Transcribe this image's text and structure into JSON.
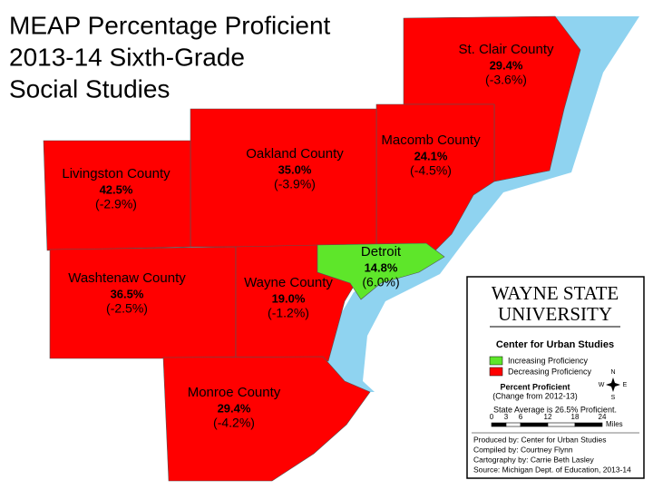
{
  "title": [
    "MEAP Percentage Proficient",
    "2013-14 Sixth-Grade",
    "Social Studies"
  ],
  "regions": [
    {
      "name": "St. Clair County",
      "percent": "29.4%",
      "change": "(-3.6%)",
      "color": "#ff0000"
    },
    {
      "name": "Macomb County",
      "percent": "24.1%",
      "change": "(-4.5%)",
      "color": "#ff0000"
    },
    {
      "name": "Oakland County",
      "percent": "35.0%",
      "change": "(-3.9%)",
      "color": "#ff0000"
    },
    {
      "name": "Livingston County",
      "percent": "42.5%",
      "change": "(-2.9%)",
      "color": "#ff0000"
    },
    {
      "name": "Washtenaw County",
      "percent": "36.5%",
      "change": "(-2.5%)",
      "color": "#ff0000"
    },
    {
      "name": "Wayne County",
      "percent": "19.0%",
      "change": "(-1.2%)",
      "color": "#ff0000"
    },
    {
      "name": "Detroit",
      "percent": "14.8%",
      "change": "(6.0%)",
      "color": "#5ee62a"
    },
    {
      "name": "Monroe County",
      "percent": "29.4%",
      "change": "(-4.2%)",
      "color": "#ff0000"
    }
  ],
  "legend": {
    "logo": [
      "WAYNE STATE",
      "UNIVERSITY"
    ],
    "center": "Center for Urban Studies",
    "items": [
      {
        "label": "Increasing Proficiency",
        "color": "#5ee62a"
      },
      {
        "label": "Decreasing Proficiency",
        "color": "#ff0000"
      }
    ],
    "percent_title": "Percent Proficient",
    "percent_sub": "(Change from 2012-13)",
    "compass": [
      "N",
      "E",
      "S",
      "W"
    ],
    "state_average": "State Average is 26.5% Proficient.",
    "scale_ticks": [
      "0",
      "3",
      "6",
      "12",
      "18",
      "24"
    ],
    "scale_unit": "Miles",
    "credits": [
      "Produced by: Center for Urban Studies",
      "Compiled by: Courtney Flynn",
      "Cartography by: Carrie Beth Lasley",
      "Source: Michigan Dept. of Education, 2013-14"
    ]
  }
}
